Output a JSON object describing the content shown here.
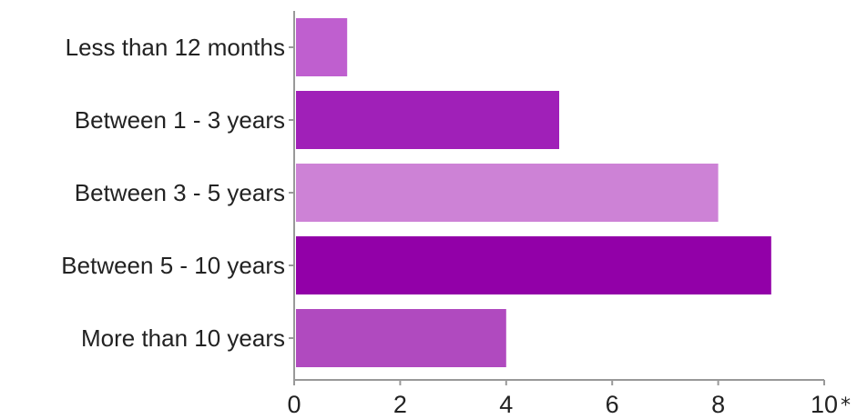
{
  "chart_data": {
    "type": "bar",
    "orientation": "horizontal",
    "title": "",
    "xlabel": "",
    "ylabel": "",
    "categories": [
      "Less than 12 months",
      "Between 1 - 3 years",
      "Between 3 - 5 years",
      "Between 5 - 10 years",
      "More than 10 years"
    ],
    "values": [
      1,
      5,
      8,
      9,
      4
    ],
    "colors": [
      "#bf5fcf",
      "#a020b8",
      "#cd82d6",
      "#9200a8",
      "#b04abf"
    ],
    "xlim": [
      0,
      10
    ],
    "xticks": [
      0,
      2,
      4,
      6,
      8,
      10
    ],
    "tick_labels": [
      "0",
      "2",
      "4",
      "6",
      "8",
      "10"
    ],
    "grid": false,
    "legend": "none"
  },
  "footnote_mark": "*"
}
